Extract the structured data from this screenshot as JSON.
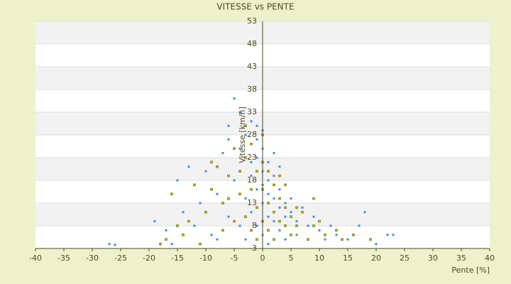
{
  "chart_data": {
    "type": "scatter",
    "title": "VITESSE vs PENTE",
    "x_label": "Pente [%]",
    "y_label": "Vitesse [km/h]",
    "xlim": [
      -40,
      40
    ],
    "ylim": [
      3,
      53
    ],
    "xticks": [
      -40,
      -35,
      -30,
      -25,
      -20,
      -15,
      -10,
      -5,
      0,
      5,
      10,
      15,
      20,
      25,
      30,
      35,
      40
    ],
    "yticks": [
      3,
      8,
      13,
      18,
      23,
      28,
      33,
      38,
      43,
      48,
      53
    ],
    "grid": true,
    "series": [
      {
        "color": "#3d8fdb",
        "x": [
          -27,
          -26,
          -19,
          -17,
          -15,
          -14,
          -12,
          -11,
          -10,
          -9,
          -8,
          -7,
          -6,
          -6,
          -5,
          -5,
          -4,
          -4,
          -4,
          -3,
          -3,
          -3,
          -2,
          -2,
          -2,
          -2,
          -1,
          -1,
          -1,
          -1,
          0,
          0,
          0,
          0,
          0,
          1,
          1,
          1,
          1,
          1,
          2,
          2,
          2,
          2,
          3,
          3,
          3,
          4,
          4,
          4,
          5,
          5,
          6,
          6,
          7,
          8,
          9,
          10,
          11,
          12,
          13,
          15,
          17,
          18,
          20,
          22,
          23,
          -16,
          -13,
          -8,
          -6,
          3,
          0,
          -1
        ],
        "values": [
          4,
          3.8,
          9,
          7,
          18,
          11,
          8,
          13,
          20,
          6,
          15,
          24,
          10,
          30,
          36,
          18,
          33,
          8,
          25,
          28,
          14,
          5,
          22,
          19,
          31,
          11,
          27,
          16,
          8,
          23,
          20,
          13,
          25,
          6,
          17,
          15,
          22,
          10,
          4,
          18,
          14,
          24,
          9,
          19,
          12,
          16,
          7,
          13,
          10,
          5,
          11,
          14,
          9,
          6,
          12,
          8,
          10,
          7,
          5,
          8,
          6,
          5,
          8,
          11,
          4,
          6,
          6,
          4,
          21,
          5,
          27,
          21,
          29,
          30
        ]
      },
      {
        "color": "#b5b800",
        "x": [
          -18,
          -17,
          -16,
          -14,
          -13,
          -12,
          -11,
          -10,
          -9,
          -8,
          -7,
          -7,
          -6,
          -5,
          -5,
          -4,
          -4,
          -3,
          -3,
          -3,
          -2,
          -2,
          -2,
          -1,
          -1,
          -1,
          0,
          0,
          0,
          0,
          1,
          1,
          1,
          2,
          2,
          2,
          3,
          3,
          3,
          4,
          4,
          5,
          5,
          6,
          7,
          8,
          9,
          10,
          11,
          13,
          14,
          16,
          19,
          -15,
          -9,
          -6,
          4,
          9,
          6
        ],
        "values": [
          4,
          5,
          15,
          6,
          9,
          17,
          4,
          11,
          16,
          21,
          7,
          13,
          19,
          25,
          9,
          15,
          20,
          10,
          23,
          30,
          7,
          16,
          26,
          12,
          20,
          5,
          9,
          16,
          22,
          28,
          7,
          13,
          20,
          11,
          17,
          5,
          9,
          14,
          19,
          8,
          12,
          6,
          10,
          8,
          11,
          5,
          8,
          9,
          6,
          7,
          5,
          6,
          5,
          8,
          22,
          14,
          17,
          14,
          12
        ]
      }
    ]
  }
}
